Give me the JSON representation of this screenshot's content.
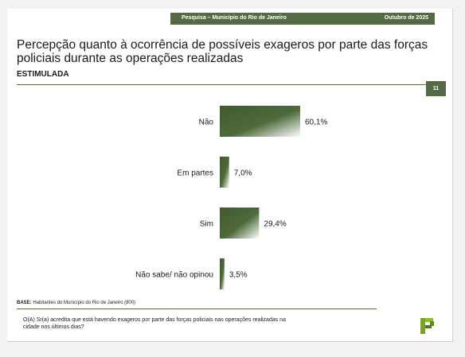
{
  "header": {
    "survey_label": "Pesquisa – Município do Rio de Janeiro",
    "date_label": "Outubro de 2025"
  },
  "page_title": "Percepção quanto à ocorrência de possíveis exageros por parte das forças policiais durante as operações realizadas",
  "page_subtitle": "ESTIMULADA",
  "page_number": "11",
  "footer": {
    "base_prefix": "BASE:",
    "base_text": " Habitantes do Município do Rio de Janeiro (800)",
    "question": "O(A) Sr(a) acredita que está havendo exageros por parte das forças policiais nas operações realizadas na cidade nos últimos dias?"
  },
  "colors": {
    "brand_green": "#556b45",
    "bar_dark": "#3f5a2c",
    "bar_light": "#ffffff"
  },
  "chart_data": {
    "type": "bar",
    "orientation": "horizontal",
    "categories": [
      "Não",
      "Em partes",
      "Sim",
      "Não sabe/ não opinou"
    ],
    "values": [
      60.1,
      7.0,
      29.4,
      3.5
    ],
    "value_labels": [
      "60,1%",
      "7,0%",
      "29,4%",
      "3,5%"
    ],
    "xlim": [
      0,
      100
    ],
    "grid": false
  }
}
